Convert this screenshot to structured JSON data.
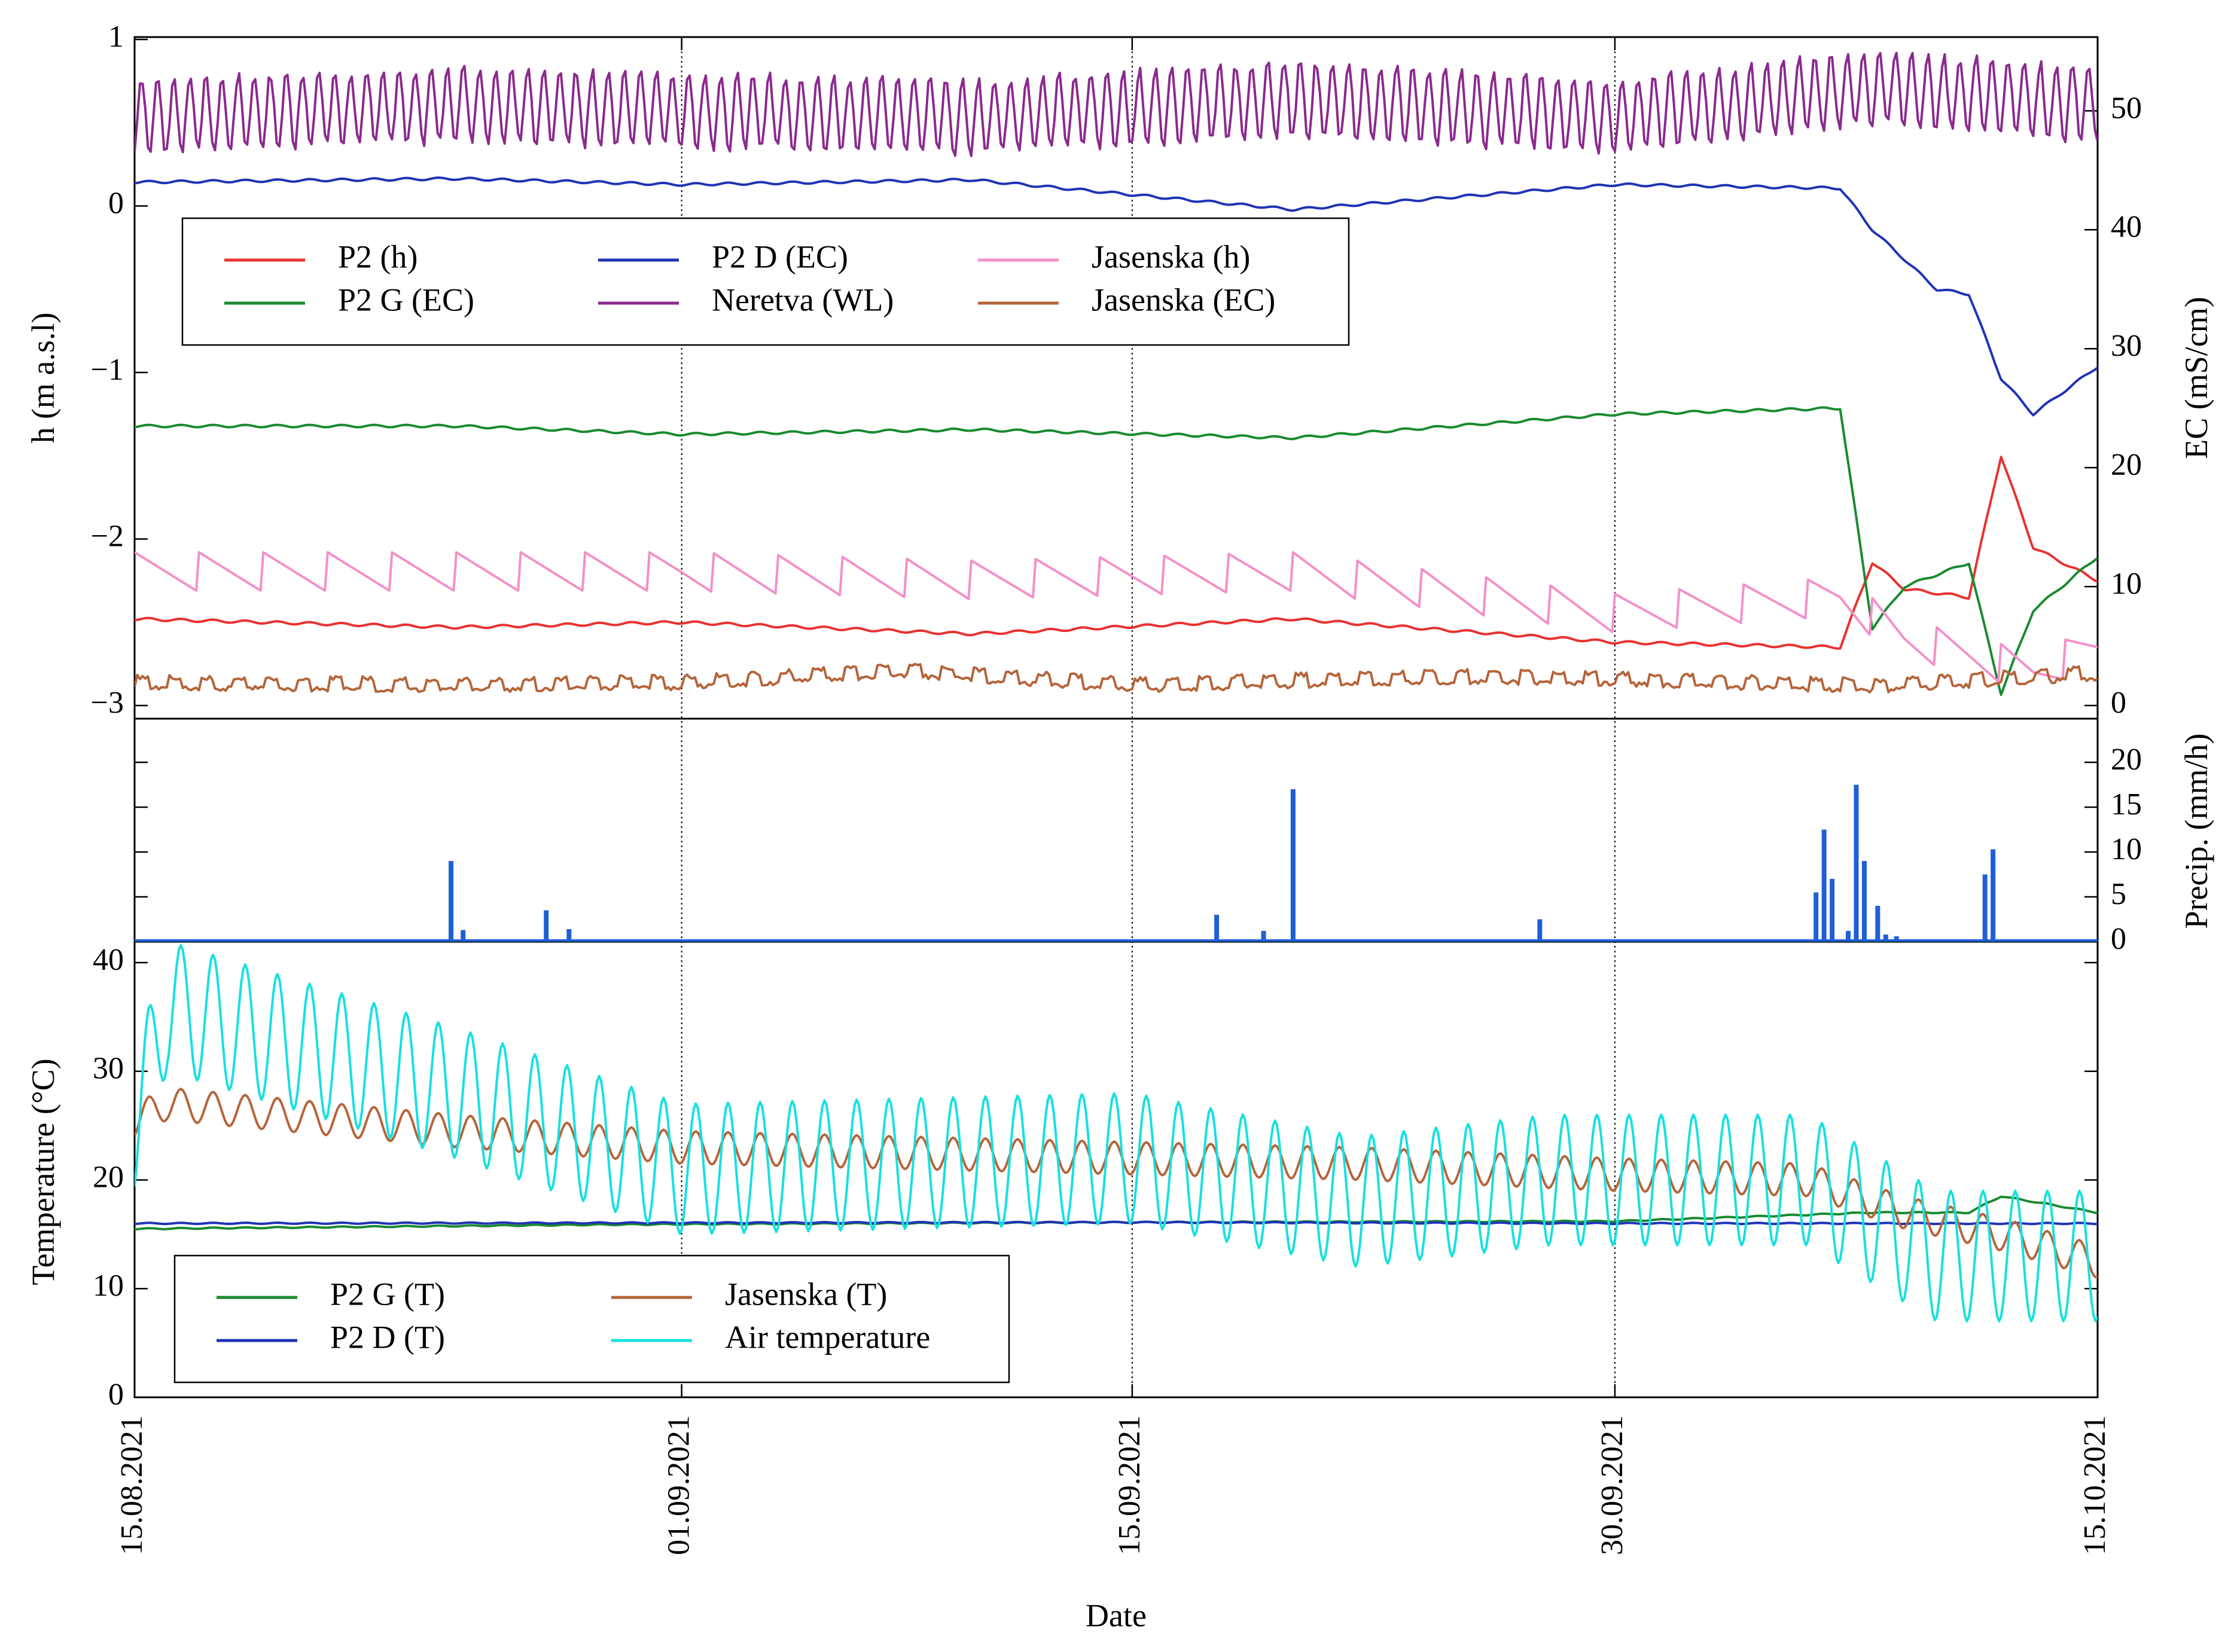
{
  "chart_data": [
    {
      "type": "line",
      "panel": "top",
      "xlabel": "",
      "ylabel": "h (m a.s.l)",
      "ylabel_right": "EC (mS/cm)",
      "ylim": [
        -3,
        1
      ],
      "ylim_right": [
        0,
        56
      ],
      "yticks": [
        "1",
        "0",
        "−1",
        "−2",
        "−3"
      ],
      "yticks_right": [
        "50",
        "40",
        "30",
        "20",
        "10",
        "0"
      ],
      "xlim": [
        "2021-08-15",
        "2021-10-15"
      ],
      "legend_position": "upper-left",
      "series": [
        {
          "name": "P2 (h)",
          "color": "#e8322f",
          "axis": "left",
          "x": [
            "2021-08-15",
            "2021-08-25",
            "2021-09-01",
            "2021-09-10",
            "2021-09-20",
            "2021-09-30",
            "2021-10-07",
            "2021-10-08",
            "2021-10-09",
            "2021-10-11",
            "2021-10-12",
            "2021-10-13",
            "2021-10-15"
          ],
          "y": [
            -2.48,
            -2.53,
            -2.5,
            -2.57,
            -2.48,
            -2.62,
            -2.65,
            -2.14,
            -2.3,
            -2.35,
            -1.5,
            -2.05,
            -2.25
          ]
        },
        {
          "name": "P2 G (EC)",
          "color": "#1a8a2f",
          "axis": "right",
          "x": [
            "2021-08-15",
            "2021-08-25",
            "2021-09-01",
            "2021-09-10",
            "2021-09-20",
            "2021-09-30",
            "2021-10-07",
            "2021-10-08",
            "2021-10-09",
            "2021-10-11",
            "2021-10-12",
            "2021-10-13",
            "2021-10-15"
          ],
          "y": [
            23.5,
            23.5,
            22.8,
            23.2,
            22.5,
            24.5,
            25.0,
            6.5,
            10.0,
            12.0,
            1.0,
            8.0,
            12.5
          ]
        },
        {
          "name": "P2 D (EC)",
          "color": "#1f33b5",
          "axis": "right",
          "x": [
            "2021-08-15",
            "2021-08-25",
            "2021-09-01",
            "2021-09-10",
            "2021-09-20",
            "2021-09-30",
            "2021-10-07",
            "2021-10-08",
            "2021-10-10",
            "2021-10-11",
            "2021-10-12",
            "2021-10-13",
            "2021-10-15"
          ],
          "y": [
            44.0,
            44.3,
            43.8,
            44.2,
            41.7,
            43.8,
            43.5,
            40.0,
            35.0,
            34.6,
            27.5,
            24.5,
            28.5
          ]
        },
        {
          "name": "Neretva (WL)",
          "color": "#8b2a8e",
          "axis": "right",
          "x": [
            "2021-08-15",
            "2021-08-25",
            "2021-09-01",
            "2021-09-10",
            "2021-09-20",
            "2021-09-30",
            "2021-10-08",
            "2021-10-15"
          ],
          "y": [
            49.5,
            50.5,
            50.0,
            49.5,
            51.0,
            49.5,
            52.0,
            50.5
          ]
        },
        {
          "name": "Jasenska (h)",
          "color": "#f490c8",
          "axis": "left",
          "x": [
            "2021-08-15",
            "2021-08-25",
            "2021-09-01",
            "2021-09-10",
            "2021-09-20",
            "2021-09-30",
            "2021-10-07",
            "2021-10-09",
            "2021-10-13",
            "2021-10-15"
          ],
          "y": [
            -2.2,
            -2.2,
            -2.2,
            -2.25,
            -2.2,
            -2.45,
            -2.35,
            -2.6,
            -2.8,
            -2.65
          ]
        },
        {
          "name": "Jasenska (EC)",
          "color": "#b5643a",
          "axis": "right",
          "x": [
            "2021-08-15",
            "2021-08-25",
            "2021-09-01",
            "2021-09-08",
            "2021-09-15",
            "2021-09-25",
            "2021-09-30",
            "2021-10-08",
            "2021-10-15"
          ],
          "y": [
            1.5,
            1.3,
            1.5,
            2.5,
            1.3,
            2.0,
            1.8,
            1.2,
            2.3
          ]
        }
      ]
    },
    {
      "type": "bar",
      "panel": "middle",
      "ylabel": "Precip. (mm/h)",
      "ylim": [
        0,
        20
      ],
      "yticks": [
        "20",
        "15",
        "10",
        "5",
        "0"
      ],
      "series": [
        {
          "name": "",
          "color": "#1f5fd6",
          "x": [
            "2021-08-24 20:00",
            "2021-08-25 05:00",
            "2021-08-27 19:00",
            "2021-08-28 12:00",
            "2021-09-17 15:00",
            "2021-09-19 02:00",
            "2021-09-20 00:00",
            "2021-09-27 16:00",
            "2021-10-06 06:00",
            "2021-10-06 12:00",
            "2021-10-06 18:00",
            "2021-10-07 06:00",
            "2021-10-07 12:00",
            "2021-10-07 18:00",
            "2021-10-08 04:00",
            "2021-10-08 10:00",
            "2021-10-08 18:00",
            "2021-10-11 12:00",
            "2021-10-11 18:00"
          ],
          "y": [
            9.0,
            1.3,
            3.5,
            1.4,
            3.0,
            1.2,
            17.0,
            2.5,
            5.5,
            12.5,
            7.0,
            1.2,
            17.5,
            9.0,
            4.0,
            0.8,
            0.6,
            7.5,
            10.3
          ]
        }
      ]
    },
    {
      "type": "line",
      "panel": "bottom",
      "xlabel": "Date",
      "ylabel": "Temperature (°C)",
      "ylim": [
        0,
        40
      ],
      "yticks": [
        "40",
        "30",
        "20",
        "10",
        "0"
      ],
      "xticks": [
        "15.08.2021",
        "01.09.2021",
        "15.09.2021",
        "30.09.2021",
        "15.10.2021"
      ],
      "legend_position": "lower-left",
      "series": [
        {
          "name": "P2 G (T)",
          "color": "#1a8a2f",
          "x": [
            "2021-08-15",
            "2021-08-30",
            "2021-09-15",
            "2021-09-30",
            "2021-10-08",
            "2021-10-11",
            "2021-10-12",
            "2021-10-15"
          ],
          "y": [
            15.5,
            15.9,
            16.1,
            16.2,
            17.0,
            17.0,
            18.5,
            17.0
          ]
        },
        {
          "name": "P2 D (T)",
          "color": "#1f33b5",
          "x": [
            "2021-08-15",
            "2021-09-15",
            "2021-09-30",
            "2021-10-08",
            "2021-10-15"
          ],
          "y": [
            16.0,
            16.1,
            16.0,
            16.0,
            16.0
          ]
        },
        {
          "name": "Jasenska  (T)",
          "color": "#b5643a",
          "x": [
            "2021-08-15",
            "2021-08-16",
            "2021-08-25",
            "2021-09-01",
            "2021-09-15",
            "2021-09-22",
            "2021-09-30",
            "2021-10-06",
            "2021-10-09",
            "2021-10-12",
            "2021-10-15"
          ],
          "y": [
            25.5,
            27.0,
            24.5,
            23.0,
            22.0,
            21.5,
            20.5,
            20.0,
            17.0,
            15.0,
            12.5
          ]
        },
        {
          "name": "Air temperature",
          "color": "#17e0e0",
          "x": [
            "2021-08-15",
            "2021-08-16",
            "2021-08-25",
            "2021-09-01",
            "2021-09-15",
            "2021-09-22",
            "2021-09-28",
            "2021-10-06",
            "2021-10-10",
            "2021-10-15"
          ],
          "y": [
            25.0,
            36.0,
            28.0,
            21.0,
            22.0,
            18.0,
            20.0,
            20.0,
            13.0,
            13.0
          ]
        }
      ]
    }
  ]
}
